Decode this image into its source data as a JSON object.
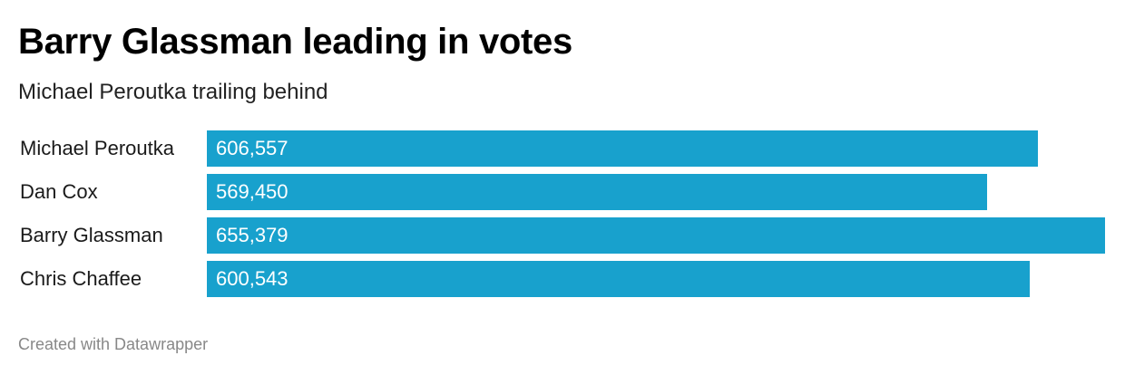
{
  "title": "Barry Glassman leading in votes",
  "subtitle": "Michael Peroutka trailing behind",
  "footer": "Created with Datawrapper",
  "colors": {
    "bar": "#18a1cd",
    "value_text": "#ffffff"
  },
  "chart_data": {
    "type": "bar",
    "orientation": "horizontal",
    "title": "Barry Glassman leading in votes",
    "subtitle": "Michael Peroutka trailing behind",
    "categories": [
      "Michael Peroutka",
      "Dan Cox",
      "Barry Glassman",
      "Chris Chaffee"
    ],
    "values": [
      606557,
      569450,
      655379,
      600543
    ],
    "value_labels": [
      "606,557",
      "569,450",
      "655,379",
      "600,543"
    ],
    "xlim": [
      0,
      655379
    ],
    "grid": false,
    "legend": "none"
  }
}
